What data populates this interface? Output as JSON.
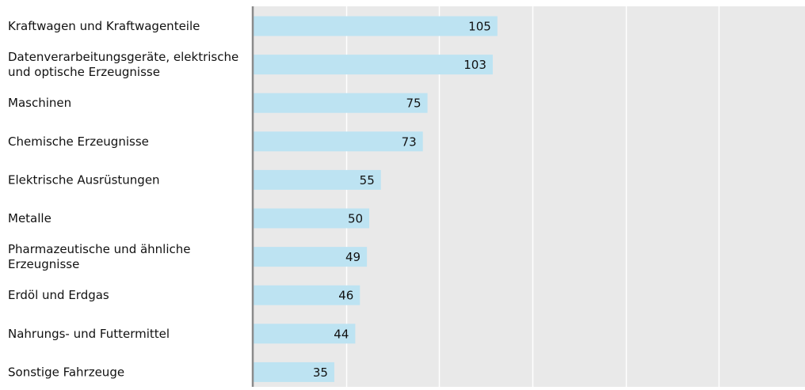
{
  "chart_data": {
    "type": "bar",
    "orientation": "horizontal",
    "title": "",
    "xlabel": "",
    "ylabel": "",
    "categories": [
      [
        "Kraftwagen und Kraftwagenteile"
      ],
      [
        "Datenverarbeitungsgeräte, elektrische",
        "und optische Erzeugnisse"
      ],
      [
        "Maschinen"
      ],
      [
        "Chemische Erzeugnisse"
      ],
      [
        "Elektrische Ausrüstungen"
      ],
      [
        "Metalle"
      ],
      [
        "Pharmazeutische und ähnliche",
        "Erzeugnisse"
      ],
      [
        "Erdöl und Erdgas"
      ],
      [
        "Nahrungs- und Futtermittel"
      ],
      [
        "Sonstige Fahrzeuge"
      ]
    ],
    "values": [
      105,
      103,
      75,
      73,
      55,
      50,
      49,
      46,
      44,
      35
    ],
    "value_labels": [
      "105",
      "103",
      "75",
      "73",
      "55",
      "50",
      "49",
      "46",
      "44",
      "35"
    ],
    "xlim": [
      0,
      237
    ],
    "grid": true,
    "gridlines_at": [
      40,
      80,
      120,
      160,
      200
    ],
    "colors": {
      "bar": "#bde3f2",
      "plot_background": "#e9e9e9",
      "gridline": "#ffffff",
      "axis": "#8a8a8a",
      "text": "#111111"
    }
  }
}
